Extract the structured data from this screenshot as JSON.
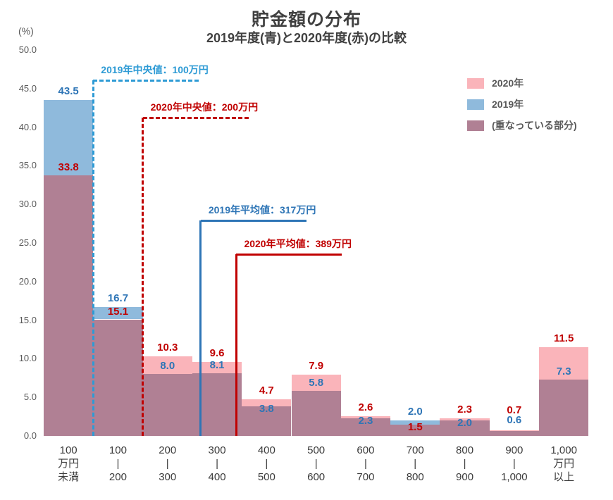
{
  "title": "貯金額の分布",
  "subtitle": "2019年度(青)と2020年度(赤)の比較",
  "y_axis": {
    "unit_label": "(%)",
    "tick_labels": [
      "50.0",
      "45.0",
      "40.0",
      "35.0",
      "30.0",
      "25.0",
      "20.0",
      "15.0",
      "10.0",
      "5.0",
      "0.0"
    ]
  },
  "legend": {
    "items": [
      {
        "label": "2020年",
        "color": "#FAB4BA"
      },
      {
        "label": "2019年",
        "color": "#8FBADC"
      },
      {
        "label": "(重なっている部分)",
        "color": "#B08094"
      }
    ]
  },
  "chart_data": {
    "type": "bar",
    "subtype": "overlapped-histogram",
    "categories": [
      [
        "100",
        "万円",
        "未満"
      ],
      [
        "100",
        "|",
        "200"
      ],
      [
        "200",
        "|",
        "300"
      ],
      [
        "300",
        "|",
        "400"
      ],
      [
        "400",
        "|",
        "500"
      ],
      [
        "500",
        "|",
        "600"
      ],
      [
        "600",
        "|",
        "700"
      ],
      [
        "700",
        "|",
        "800"
      ],
      [
        "800",
        "|",
        "900"
      ],
      [
        "900",
        "|",
        "1,000"
      ],
      [
        "1,000",
        "万円",
        "以上"
      ]
    ],
    "series": [
      {
        "name": "2019年",
        "color": "#8FBADC",
        "label_color": "#2E75B6",
        "values": [
          43.5,
          16.7,
          8.0,
          8.1,
          3.8,
          5.8,
          2.3,
          2.0,
          2.0,
          0.6,
          7.3
        ]
      },
      {
        "name": "2020年",
        "color": "#FAB4BA",
        "label_color": "#C00000",
        "values": [
          33.8,
          15.1,
          10.3,
          9.6,
          4.7,
          7.9,
          2.6,
          1.5,
          2.3,
          0.7,
          11.5
        ]
      }
    ],
    "overlap_color": "#B08094",
    "overlap_label": "(重なっている部分)",
    "ylim": [
      0,
      50
    ],
    "y_tick_step": 5,
    "grid": false,
    "legend_position": "top-right"
  },
  "annotations": [
    {
      "label": "2019年中央値：100万円",
      "x_value_man_yen": 100,
      "line_style": "dashed",
      "color": "#2E9BD5"
    },
    {
      "label": "2020年中央値：200万円",
      "x_value_man_yen": 200,
      "line_style": "dashed",
      "color": "#C00000"
    },
    {
      "label": "2019年平均値：317万円",
      "x_value_man_yen": 317,
      "line_style": "solid",
      "color": "#2E75B6"
    },
    {
      "label": "2020年平均値：389万円",
      "x_value_man_yen": 389,
      "line_style": "solid",
      "color": "#C00000"
    }
  ]
}
